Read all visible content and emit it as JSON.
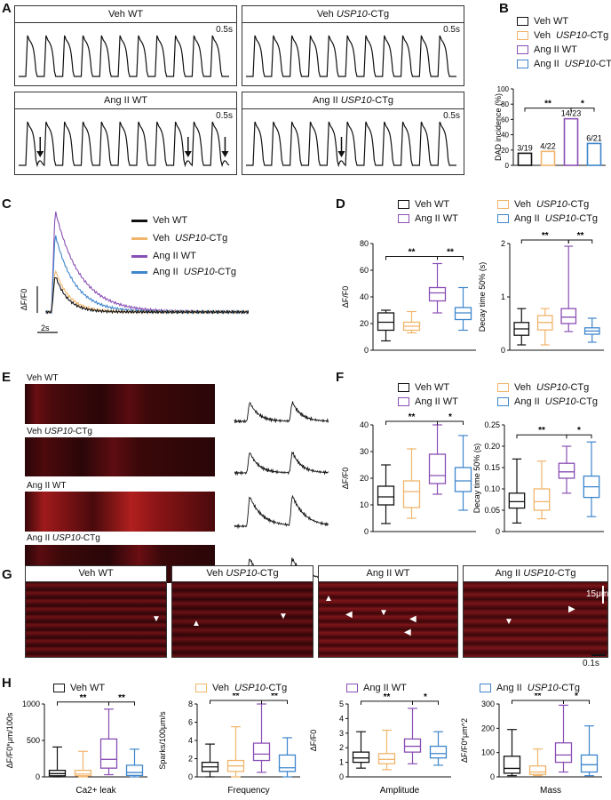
{
  "panels": {
    "A": "A",
    "B": "B",
    "C": "C",
    "D": "D",
    "E": "E",
    "F": "F",
    "G": "G",
    "H": "H"
  },
  "groups": {
    "veh_wt": "Veh  WT",
    "veh_tg_prefix": "Veh ",
    "ang_wt": "Ang II WT",
    "ang_tg_prefix": "Ang II ",
    "usp": "USP10",
    "ctg": "-CTg"
  },
  "colors": {
    "veh_wt": "#111111",
    "veh_tg": "#f0b56b",
    "ang_wt": "#8a4fb5",
    "ang_tg": "#3e86cc"
  },
  "scale_bars": {
    "A": "0.5s",
    "C_y": "ΔF/F0",
    "C_x": "2s",
    "G_y": "15μm",
    "G_x": "0.1s"
  },
  "chart_data": [
    {
      "panel": "B",
      "type": "bar",
      "categories": [
        "Veh WT",
        "Veh USP10-CTg",
        "Ang II WT",
        "Ang II USP10-CTg"
      ],
      "values": [
        15.8,
        18.2,
        60.9,
        28.6
      ],
      "bar_labels": [
        "3/19",
        "4/22",
        "14/23",
        "6/21"
      ],
      "ylabel": "DAD incidence (%)",
      "yticks": [
        "0",
        "20",
        "40",
        "60",
        "80",
        "100"
      ],
      "ylim": [
        0,
        100
      ],
      "significance": [
        "**",
        "*"
      ]
    },
    {
      "panel": "D-left",
      "type": "box",
      "ylabel": "ΔF/F0",
      "yticks": [
        "0",
        "20",
        "40",
        "60",
        "80"
      ],
      "ylim": [
        0,
        80
      ],
      "boxes": [
        {
          "min": 7,
          "q1": 15,
          "median": 21,
          "q3": 28,
          "max": 30
        },
        {
          "min": 13,
          "q1": 15,
          "median": 18,
          "q3": 21,
          "max": 29
        },
        {
          "min": 28,
          "q1": 37,
          "median": 43,
          "q3": 47,
          "max": 65
        },
        {
          "min": 15,
          "q1": 23,
          "median": 28,
          "q3": 32,
          "max": 47
        }
      ],
      "significance": [
        "**",
        "**"
      ]
    },
    {
      "panel": "D-right",
      "type": "box",
      "ylabel": "Decay time 50% (s)",
      "yticks": [
        "0",
        "1",
        "2"
      ],
      "ylim": [
        0,
        2
      ],
      "boxes": [
        {
          "min": 0.1,
          "q1": 0.28,
          "median": 0.4,
          "q3": 0.52,
          "max": 0.78
        },
        {
          "min": 0.1,
          "q1": 0.38,
          "median": 0.52,
          "q3": 0.65,
          "max": 0.78
        },
        {
          "min": 0.35,
          "q1": 0.5,
          "median": 0.62,
          "q3": 0.78,
          "max": 1.95
        },
        {
          "min": 0.15,
          "q1": 0.3,
          "median": 0.36,
          "q3": 0.42,
          "max": 0.6
        }
      ],
      "significance": [
        "**",
        "**"
      ]
    },
    {
      "panel": "F-left",
      "type": "box",
      "ylabel": "ΔF/F0",
      "yticks": [
        "0",
        "10",
        "20",
        "30",
        "40"
      ],
      "ylim": [
        0,
        40
      ],
      "boxes": [
        {
          "min": 3,
          "q1": 10,
          "median": 13,
          "q3": 17,
          "max": 25
        },
        {
          "min": 5,
          "q1": 9,
          "median": 15,
          "q3": 19,
          "max": 31
        },
        {
          "min": 14,
          "q1": 18,
          "median": 21,
          "q3": 29,
          "max": 40
        },
        {
          "min": 8,
          "q1": 15,
          "median": 19,
          "q3": 24,
          "max": 36
        }
      ],
      "significance": [
        "**",
        "*"
      ]
    },
    {
      "panel": "F-right",
      "type": "box",
      "ylabel": "Decay time 50% (s)",
      "yticks": [
        "0",
        "0.05",
        "0.10",
        "0.15",
        "0.20",
        "0.25"
      ],
      "ylim": [
        0,
        0.25
      ],
      "boxes": [
        {
          "min": 0.02,
          "q1": 0.055,
          "median": 0.07,
          "q3": 0.09,
          "max": 0.17
        },
        {
          "min": 0.03,
          "q1": 0.05,
          "median": 0.07,
          "q3": 0.1,
          "max": 0.165
        },
        {
          "min": 0.09,
          "q1": 0.125,
          "median": 0.14,
          "q3": 0.16,
          "max": 0.2
        },
        {
          "min": 0.035,
          "q1": 0.08,
          "median": 0.105,
          "q3": 0.13,
          "max": 0.21
        }
      ],
      "significance": [
        "**",
        "*"
      ]
    },
    {
      "panel": "H-1",
      "type": "box",
      "ylabel": "ΔF/F0*μm/100s",
      "xlabel": "Ca2+ leak",
      "yticks": [
        "0",
        "500",
        "1000"
      ],
      "ylim": [
        0,
        1000
      ],
      "boxes": [
        {
          "min": 0,
          "q1": 15,
          "median": 45,
          "q3": 90,
          "max": 410
        },
        {
          "min": 0,
          "q1": 15,
          "median": 40,
          "q3": 90,
          "max": 350
        },
        {
          "min": 30,
          "q1": 120,
          "median": 240,
          "q3": 520,
          "max": 930
        },
        {
          "min": 0,
          "q1": 20,
          "median": 60,
          "q3": 160,
          "max": 380
        }
      ],
      "significance": [
        "**",
        "**"
      ]
    },
    {
      "panel": "H-2",
      "type": "box",
      "ylabel": "Sparks/100μm/s",
      "xlabel": "Frequency",
      "yticks": [
        "0",
        "2",
        "4",
        "6",
        "8"
      ],
      "ylim": [
        0,
        8
      ],
      "boxes": [
        {
          "min": 0,
          "q1": 0.6,
          "median": 1.1,
          "q3": 1.6,
          "max": 3.6
        },
        {
          "min": 0,
          "q1": 0.6,
          "median": 1.2,
          "q3": 1.8,
          "max": 5.5
        },
        {
          "min": 0.5,
          "q1": 1.8,
          "median": 2.5,
          "q3": 3.7,
          "max": 8
        },
        {
          "min": 0,
          "q1": 0.6,
          "median": 1.0,
          "q3": 2.4,
          "max": 4.3
        }
      ],
      "significance": [
        "**",
        "**"
      ]
    },
    {
      "panel": "H-3",
      "type": "box",
      "ylabel": "ΔF/F0",
      "xlabel": "Amplitude",
      "yticks": [
        "0",
        "1",
        "2",
        "3",
        "4",
        "5"
      ],
      "ylim": [
        0,
        5
      ],
      "boxes": [
        {
          "min": 0.6,
          "q1": 1.0,
          "median": 1.3,
          "q3": 1.7,
          "max": 3.1
        },
        {
          "min": 0.5,
          "q1": 0.9,
          "median": 1.2,
          "q3": 1.6,
          "max": 3.2
        },
        {
          "min": 0.9,
          "q1": 1.7,
          "median": 2.1,
          "q3": 2.6,
          "max": 4.7
        },
        {
          "min": 0.8,
          "q1": 1.3,
          "median": 1.6,
          "q3": 2.1,
          "max": 3.1
        }
      ],
      "significance": [
        "**",
        "*"
      ]
    },
    {
      "panel": "H-4",
      "type": "box",
      "ylabel": "ΔF/F0*μm^2",
      "xlabel": "Mass",
      "yticks": [
        "0",
        "100",
        "200",
        "300"
      ],
      "ylim": [
        0,
        300
      ],
      "boxes": [
        {
          "min": 5,
          "q1": 15,
          "median": 35,
          "q3": 85,
          "max": 195
        },
        {
          "min": 5,
          "q1": 10,
          "median": 20,
          "q3": 45,
          "max": 115
        },
        {
          "min": 20,
          "q1": 60,
          "median": 90,
          "q3": 140,
          "max": 295
        },
        {
          "min": 5,
          "q1": 20,
          "median": 50,
          "q3": 90,
          "max": 210
        }
      ],
      "significance": [
        "**",
        "*"
      ]
    }
  ]
}
